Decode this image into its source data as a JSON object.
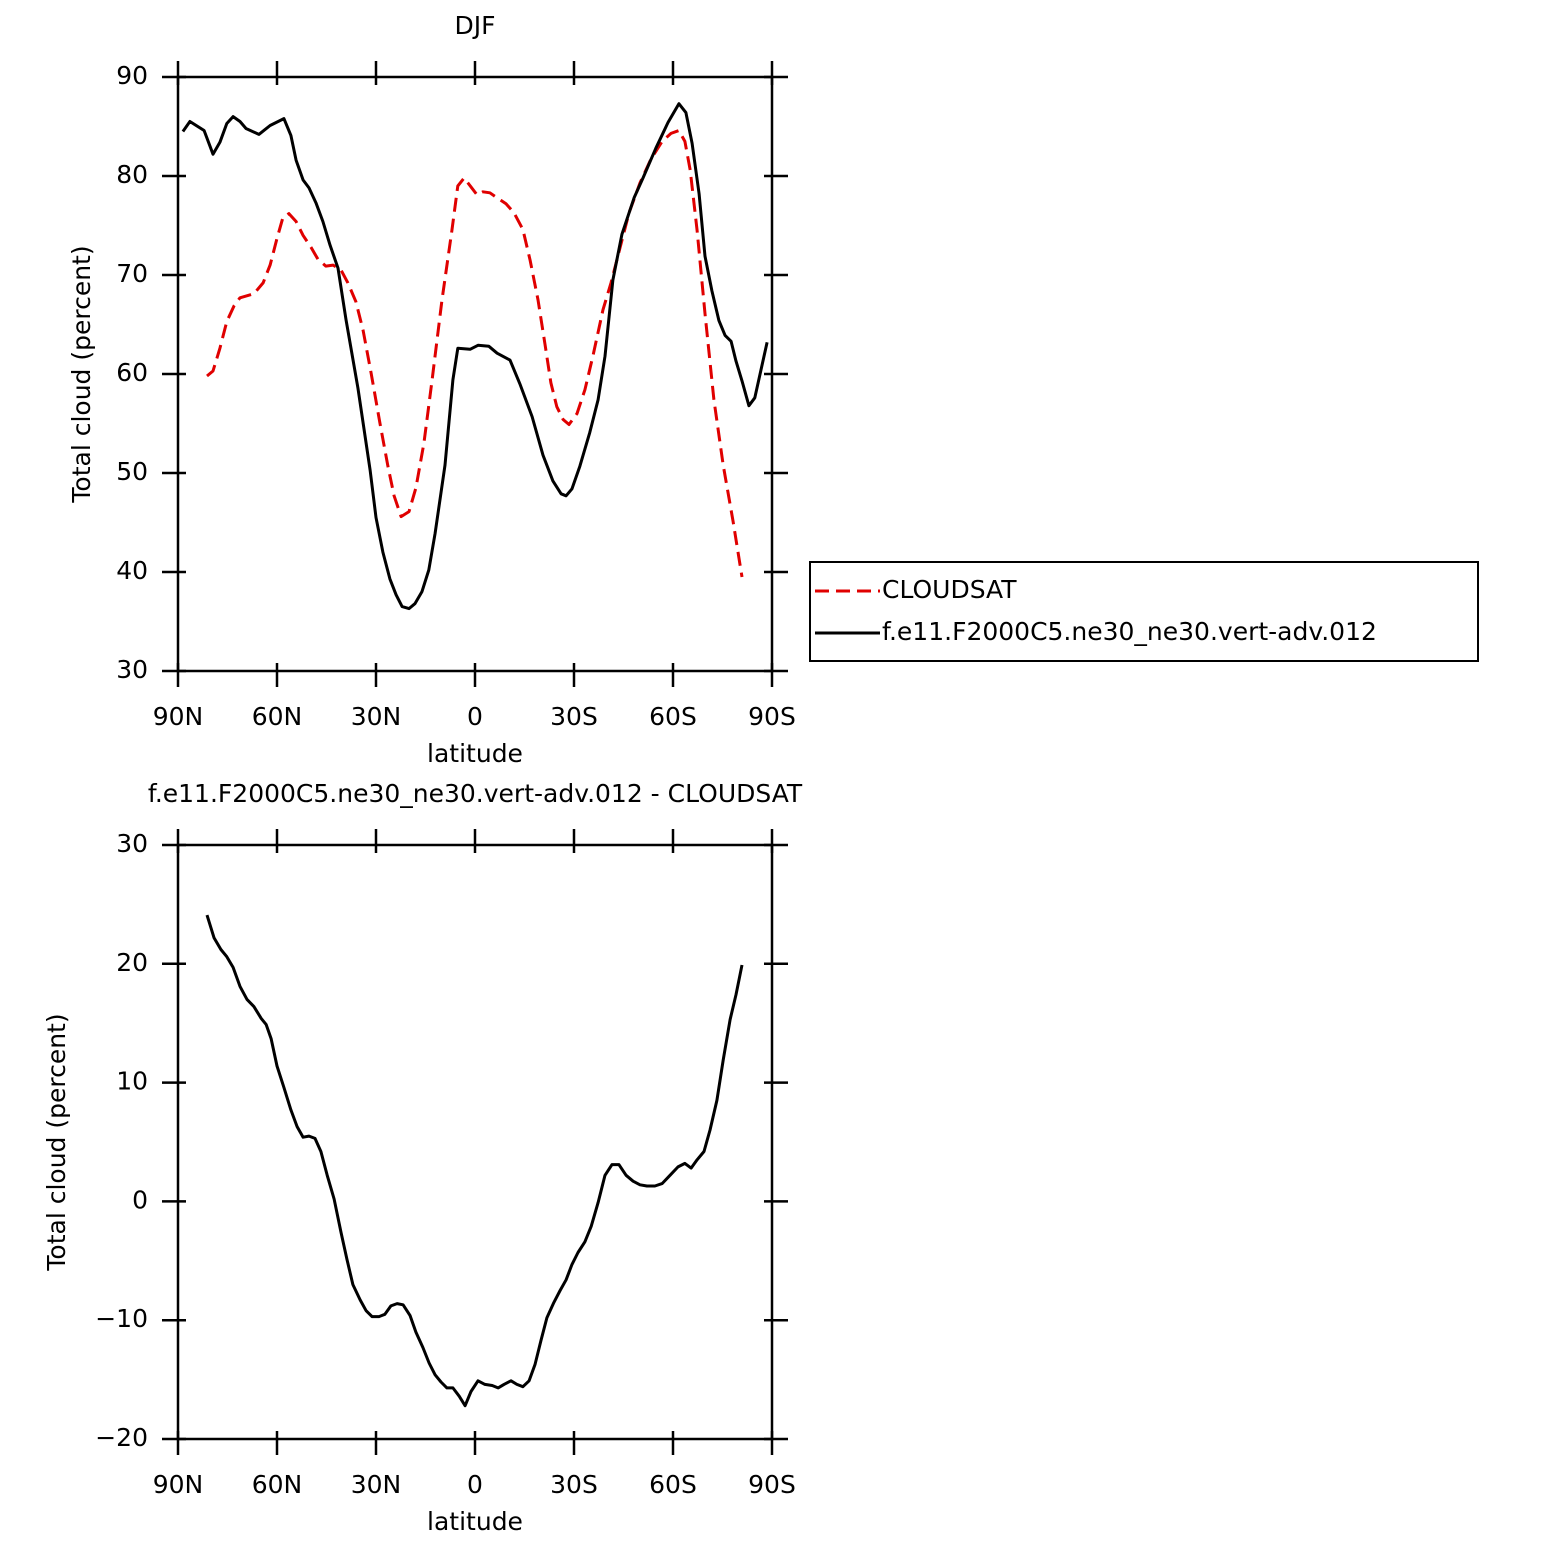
{
  "chart_data": [
    {
      "type": "line",
      "title": "DJF",
      "xlabel": "latitude",
      "ylabel": "Total cloud (percent)",
      "xlim": [
        90,
        -90
      ],
      "xticks": [
        {
          "value": 90,
          "label": "90N"
        },
        {
          "value": 60,
          "label": "60N"
        },
        {
          "value": 30,
          "label": "30N"
        },
        0,
        {
          "value": -30,
          "label": "30S"
        },
        {
          "value": -60,
          "label": "60S"
        },
        {
          "value": -90,
          "label": "90S"
        }
      ],
      "ylim": [
        30,
        90
      ],
      "yticks": [
        30,
        40,
        50,
        60,
        70,
        80,
        90
      ],
      "legend": "outside right",
      "series": [
        {
          "name": "CLOUDSAT",
          "color": "#e00000",
          "line_style": "dashed",
          "x": [
            81.2,
            79.4,
            77.3,
            75.2,
            73.0,
            71.2,
            67.0,
            64.2,
            62.1,
            60.0,
            58.2,
            56.4,
            54.2,
            52.1,
            49.7,
            47.6,
            45.2,
            43.0,
            40.6,
            38.5,
            36.1,
            33.9,
            31.5,
            28.8,
            26.4,
            24.5,
            22.4,
            20.0,
            17.9,
            15.5,
            13.0,
            10.0,
            7.0,
            5.2,
            3.3,
            1.2,
            -0.6,
            -2.4,
            -4.5,
            -6.7,
            -9.4,
            -11.8,
            -14.5,
            -16.7,
            -19.1,
            -21.2,
            -23.0,
            -24.8,
            -26.7,
            -28.5,
            -30.9,
            -33.3,
            -35.8,
            -38.8,
            -41.2,
            -43.9,
            -46.7,
            -50.0,
            -53.3,
            -56.7,
            -59.4,
            -61.8,
            -63.6,
            -65.2,
            -67.3,
            -69.7,
            -72.4,
            -75.2,
            -78.2,
            -80.9
          ],
          "values": [
            59.8,
            60.3,
            62.6,
            65.3,
            66.9,
            67.7,
            68.1,
            69.2,
            71.0,
            73.7,
            75.8,
            76.2,
            75.4,
            74.0,
            72.8,
            71.6,
            70.9,
            71.0,
            70.5,
            69.2,
            67.3,
            64.4,
            60.1,
            55.0,
            50.7,
            47.7,
            45.6,
            46.1,
            48.5,
            53.0,
            59.4,
            67.5,
            74.5,
            79.0,
            79.8,
            78.9,
            78.1,
            78.4,
            78.3,
            77.8,
            77.2,
            76.3,
            74.6,
            71.5,
            67.5,
            63.0,
            59.1,
            56.7,
            55.4,
            54.9,
            56.0,
            58.4,
            61.9,
            66.5,
            69.2,
            72.7,
            76.3,
            79.3,
            81.7,
            83.5,
            84.3,
            84.6,
            83.5,
            80.6,
            74.5,
            66.1,
            57.4,
            50.8,
            45.1,
            39.5
          ]
        },
        {
          "name": "f.e11.F2000C5.ne30_ne30.vert-adv.012",
          "color": "#000000",
          "line_style": "solid",
          "x": [
            88.5,
            86.4,
            82.1,
            79.4,
            77.3,
            75.2,
            73.3,
            71.2,
            69.4,
            65.5,
            62.1,
            57.9,
            55.8,
            54.2,
            52.1,
            50.3,
            48.2,
            46.1,
            43.9,
            41.5,
            39.1,
            35.5,
            31.8,
            30.0,
            27.9,
            25.8,
            23.9,
            22.1,
            20.0,
            18.2,
            16.1,
            14.0,
            12.1,
            9.1,
            6.7,
            5.2,
            1.5,
            -0.9,
            -4.2,
            -6.7,
            -10.6,
            -13.6,
            -17.3,
            -20.6,
            -23.6,
            -26.1,
            -27.6,
            -29.4,
            -31.8,
            -34.8,
            -37.3,
            -39.4,
            -41.8,
            -44.5,
            -48.2,
            -50.9,
            -54.8,
            -58.5,
            -61.8,
            -63.9,
            -65.8,
            -67.9,
            -69.7,
            -71.8,
            -73.9,
            -75.8,
            -77.6,
            -79.1,
            -80.9,
            -83.0,
            -84.8,
            -88.5
          ],
          "values": [
            84.5,
            85.5,
            84.6,
            82.2,
            83.4,
            85.3,
            86.0,
            85.5,
            84.8,
            84.2,
            85.1,
            85.8,
            84.1,
            81.6,
            79.6,
            78.8,
            77.3,
            75.4,
            73.0,
            70.7,
            65.5,
            58.6,
            50.3,
            45.5,
            42.0,
            39.3,
            37.7,
            36.5,
            36.3,
            36.8,
            38.0,
            40.2,
            43.9,
            50.8,
            59.4,
            62.6,
            62.5,
            62.9,
            62.8,
            62.1,
            61.4,
            59.0,
            55.7,
            51.8,
            49.2,
            47.9,
            47.7,
            48.4,
            50.7,
            54.1,
            57.4,
            61.8,
            69.5,
            74.1,
            77.8,
            79.8,
            82.8,
            85.4,
            87.3,
            86.4,
            83.3,
            78.2,
            71.9,
            68.4,
            65.4,
            63.9,
            63.3,
            61.3,
            59.3,
            56.8,
            57.6,
            63.2
          ]
        }
      ]
    },
    {
      "type": "line",
      "title": "f.e11.F2000C5.ne30_ne30.vert-adv.012 - CLOUDSAT",
      "xlabel": "latitude",
      "ylabel": "Total cloud (percent)",
      "xlim": [
        90,
        -90
      ],
      "xticks": [
        {
          "value": 90,
          "label": "90N"
        },
        {
          "value": 60,
          "label": "60N"
        },
        {
          "value": 30,
          "label": "30N"
        },
        0,
        {
          "value": -30,
          "label": "30S"
        },
        {
          "value": -60,
          "label": "60S"
        },
        {
          "value": -90,
          "label": "90S"
        }
      ],
      "ylim": [
        -20,
        30
      ],
      "yticks": [
        {
          "value": -20,
          "label": "−20"
        },
        {
          "value": -10,
          "label": "−10"
        },
        0,
        10,
        20,
        30
      ],
      "series": [
        {
          "color": "#000000",
          "line_style": "solid",
          "x": [
            81.2,
            79.1,
            77.0,
            75.2,
            73.3,
            71.2,
            69.1,
            67.0,
            64.8,
            63.3,
            61.8,
            60.0,
            57.9,
            55.8,
            53.9,
            52.1,
            50.3,
            48.5,
            46.7,
            44.8,
            42.7,
            40.6,
            38.8,
            37.0,
            34.8,
            33.0,
            31.2,
            29.1,
            27.3,
            25.5,
            23.6,
            21.8,
            19.7,
            17.9,
            15.8,
            13.9,
            12.1,
            10.3,
            8.5,
            6.7,
            4.8,
            3.0,
            1.2,
            -0.9,
            -3.0,
            -5.2,
            -7.0,
            -8.8,
            -10.9,
            -12.7,
            -14.5,
            -16.4,
            -18.2,
            -20.0,
            -21.8,
            -23.9,
            -25.8,
            -27.6,
            -29.4,
            -31.2,
            -33.3,
            -35.2,
            -37.3,
            -39.4,
            -41.5,
            -43.6,
            -45.8,
            -47.9,
            -50.0,
            -52.1,
            -54.5,
            -56.7,
            -59.1,
            -61.5,
            -63.6,
            -65.5,
            -67.3,
            -69.4,
            -71.2,
            -73.3,
            -75.2,
            -77.3,
            -79.1,
            -80.9
          ],
          "values": [
            24.1,
            22.2,
            21.2,
            20.6,
            19.7,
            18.1,
            17.0,
            16.4,
            15.4,
            14.9,
            13.7,
            11.4,
            9.6,
            7.7,
            6.3,
            5.4,
            5.5,
            5.3,
            4.2,
            2.2,
            0.2,
            -2.6,
            -4.9,
            -7.0,
            -8.3,
            -9.2,
            -9.7,
            -9.7,
            -9.5,
            -8.8,
            -8.6,
            -8.7,
            -9.6,
            -11.0,
            -12.3,
            -13.6,
            -14.6,
            -15.2,
            -15.7,
            -15.7,
            -16.4,
            -17.2,
            -16.0,
            -15.1,
            -15.4,
            -15.5,
            -15.7,
            -15.4,
            -15.1,
            -15.4,
            -15.6,
            -15.1,
            -13.7,
            -11.7,
            -9.8,
            -8.5,
            -7.5,
            -6.6,
            -5.3,
            -4.3,
            -3.4,
            -2.1,
            -0.1,
            2.2,
            3.1,
            3.1,
            2.2,
            1.7,
            1.4,
            1.3,
            1.3,
            1.5,
            2.2,
            2.9,
            3.2,
            2.8,
            3.5,
            4.2,
            6.0,
            8.5,
            11.9,
            15.3,
            17.4,
            19.9
          ]
        }
      ]
    }
  ]
}
